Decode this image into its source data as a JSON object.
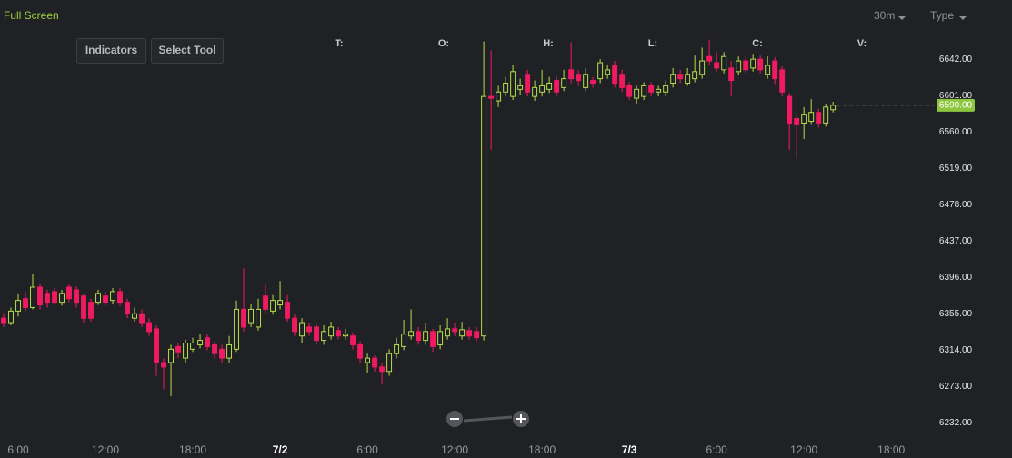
{
  "toolbar": {
    "full_screen": "Full Screen",
    "interval": "30m",
    "type": "Type",
    "buttons": [
      "Indicators",
      "Select Tool"
    ]
  },
  "legend_labels": [
    "T:",
    "O:",
    "H:",
    "L:",
    "C:",
    "V:"
  ],
  "chart_data": {
    "type": "candlestick",
    "up_color": "#b5dc4a",
    "down_color": "#ef1a60",
    "grid": false,
    "x": [
      5,
      5.5,
      6,
      6.5,
      7,
      7.5,
      8,
      8.5,
      9,
      9.5,
      10,
      10.5,
      11,
      11.5,
      12,
      12.5,
      13,
      13.5,
      14,
      14.5,
      15,
      15.5,
      16,
      16.5,
      17,
      17.5,
      18,
      18.5,
      19,
      19.5,
      20,
      20.5,
      21,
      21.5,
      22,
      22.5,
      23,
      23.5,
      24,
      24.5,
      25,
      25.5,
      26,
      26.5,
      27,
      27.5,
      28,
      28.5,
      29,
      29.5,
      30,
      30.5,
      31,
      31.5,
      32,
      32.5,
      33,
      33.5,
      34,
      34.5,
      35,
      35.5,
      36,
      36.5,
      37,
      37.5,
      38,
      38.5,
      39,
      39.5,
      40,
      40.5,
      41,
      41.5,
      42,
      42.5,
      43,
      43.5,
      44,
      44.5,
      45,
      45.5,
      46,
      46.5,
      47,
      47.5,
      48,
      48.5,
      49,
      49.5,
      50,
      50.5,
      51,
      51.5,
      52,
      52.5,
      53,
      53.5,
      54,
      54.5,
      55,
      55.5,
      56,
      56.5,
      57,
      57.5,
      58,
      58.5,
      59,
      59.5,
      60,
      60.5,
      61,
      61.5,
      62
    ],
    "open": [
      6350,
      6345,
      6358,
      6372,
      6362,
      6385,
      6378,
      6380,
      6368,
      6385,
      6382,
      6375,
      6368,
      6368,
      6375,
      6370,
      6380,
      6368,
      6350,
      6355,
      6345,
      6338,
      6300,
      6300,
      6318,
      6305,
      6315,
      6320,
      6328,
      6320,
      6315,
      6305,
      6315,
      6360,
      6345,
      6340,
      6375,
      6358,
      6365,
      6368,
      6350,
      6330,
      6340,
      6340,
      6325,
      6330,
      6336,
      6330,
      6330,
      6320,
      6300,
      6305,
      6295,
      6290,
      6310,
      6318,
      6330,
      6335,
      6325,
      6335,
      6320,
      6330,
      6338,
      6330,
      6336,
      6335,
      6330,
      6600,
      6595,
      6605,
      6600,
      6608,
      6625,
      6600,
      6605,
      6608,
      6618,
      6610,
      6630,
      6625,
      6610,
      6618,
      6620,
      6625,
      6635,
      6625,
      6612,
      6598,
      6600,
      6612,
      6605,
      6605,
      6615,
      6625,
      6615,
      6620,
      6625,
      6645,
      6638,
      6630,
      6632,
      6628,
      6640,
      6632,
      6642,
      6625,
      6640,
      6630,
      6600,
      6575,
      6570,
      6572,
      6582,
      6570,
      6585
    ],
    "high": [
      6356,
      6362,
      6378,
      6380,
      6400,
      6388,
      6382,
      6384,
      6382,
      6388,
      6386,
      6378,
      6372,
      6382,
      6380,
      6384,
      6384,
      6372,
      6362,
      6360,
      6350,
      6342,
      6305,
      6320,
      6322,
      6326,
      6328,
      6332,
      6332,
      6324,
      6320,
      6330,
      6370,
      6406,
      6366,
      6372,
      6388,
      6376,
      6392,
      6376,
      6355,
      6350,
      6345,
      6344,
      6342,
      6346,
      6340,
      6338,
      6334,
      6324,
      6310,
      6308,
      6300,
      6315,
      6328,
      6348,
      6360,
      6340,
      6345,
      6338,
      6342,
      6350,
      6345,
      6346,
      6340,
      6340,
      6662,
      6652,
      6612,
      6622,
      6635,
      6620,
      6630,
      6618,
      6630,
      6622,
      6622,
      6630,
      6661,
      6630,
      6632,
      6622,
      6642,
      6636,
      6640,
      6630,
      6616,
      6612,
      6616,
      6616,
      6612,
      6618,
      6632,
      6630,
      6632,
      6646,
      6655,
      6664,
      6650,
      6650,
      6640,
      6645,
      6646,
      6648,
      6646,
      6645,
      6644,
      6634,
      6604,
      6580,
      6588,
      6597,
      6586,
      6592,
      6594
    ],
    "low": [
      6340,
      6342,
      6352,
      6358,
      6360,
      6360,
      6362,
      6365,
      6364,
      6368,
      6362,
      6345,
      6346,
      6365,
      6364,
      6366,
      6364,
      6350,
      6346,
      6340,
      6330,
      6285,
      6270,
      6262,
      6305,
      6300,
      6312,
      6316,
      6314,
      6305,
      6300,
      6300,
      6312,
      6335,
      6340,
      6336,
      6355,
      6354,
      6360,
      6346,
      6330,
      6322,
      6330,
      6320,
      6320,
      6326,
      6326,
      6326,
      6315,
      6300,
      6288,
      6290,
      6275,
      6285,
      6305,
      6314,
      6326,
      6320,
      6320,
      6312,
      6315,
      6326,
      6330,
      6326,
      6326,
      6324,
      6325,
      6540,
      6588,
      6600,
      6596,
      6602,
      6600,
      6595,
      6600,
      6604,
      6600,
      6606,
      6615,
      6612,
      6606,
      6610,
      6615,
      6620,
      6610,
      6605,
      6596,
      6592,
      6596,
      6600,
      6600,
      6600,
      6610,
      6615,
      6612,
      6616,
      6620,
      6636,
      6628,
      6626,
      6600,
      6624,
      6626,
      6628,
      6626,
      6620,
      6614,
      6600,
      6540,
      6530,
      6552,
      6568,
      6565,
      6566,
      6582
    ],
    "close": [
      6345,
      6358,
      6370,
      6362,
      6385,
      6365,
      6368,
      6368,
      6378,
      6372,
      6368,
      6350,
      6350,
      6378,
      6368,
      6380,
      6368,
      6355,
      6355,
      6345,
      6335,
      6300,
      6295,
      6315,
      6312,
      6322,
      6322,
      6325,
      6318,
      6310,
      6305,
      6320,
      6360,
      6340,
      6360,
      6360,
      6360,
      6370,
      6370,
      6350,
      6335,
      6345,
      6335,
      6325,
      6335,
      6340,
      6330,
      6332,
      6320,
      6305,
      6305,
      6295,
      6290,
      6310,
      6320,
      6332,
      6335,
      6325,
      6335,
      6318,
      6335,
      6338,
      6335,
      6337,
      6330,
      6328,
      6600,
      6598,
      6605,
      6615,
      6628,
      6612,
      6605,
      6610,
      6612,
      6615,
      6605,
      6620,
      6620,
      6618,
      6625,
      6615,
      6638,
      6630,
      6615,
      6610,
      6600,
      6608,
      6612,
      6605,
      6608,
      6612,
      6625,
      6620,
      6625,
      6628,
      6640,
      6640,
      6632,
      6645,
      6618,
      6640,
      6630,
      6642,
      6630,
      6635,
      6620,
      6605,
      6570,
      6568,
      6580,
      6582,
      6570,
      6588,
      6590
    ],
    "xlim": [
      4.75,
      68.8
    ],
    "xticks": [
      {
        "value": 6,
        "label": "6:00"
      },
      {
        "value": 12,
        "label": "12:00"
      },
      {
        "value": 18,
        "label": "18:00"
      },
      {
        "value": 24,
        "label": "7/2"
      },
      {
        "value": 30,
        "label": "6:00"
      },
      {
        "value": 36,
        "label": "12:00"
      },
      {
        "value": 42,
        "label": "18:00"
      },
      {
        "value": 48,
        "label": "7/3"
      },
      {
        "value": 54,
        "label": "6:00"
      },
      {
        "value": 60,
        "label": "12:00"
      },
      {
        "value": 66,
        "label": "18:00"
      }
    ],
    "ylim": [
      6217,
      6678
    ],
    "yticks": [
      {
        "value": 6232,
        "label": "6232.00"
      },
      {
        "value": 6273,
        "label": "6273.00"
      },
      {
        "value": 6314,
        "label": "6314.00"
      },
      {
        "value": 6355,
        "label": "6355.00"
      },
      {
        "value": 6396,
        "label": "6396.00"
      },
      {
        "value": 6437,
        "label": "6437.00"
      },
      {
        "value": 6478,
        "label": "6478.00"
      },
      {
        "value": 6519,
        "label": "6519.00"
      },
      {
        "value": 6560,
        "label": "6560.00"
      },
      {
        "value": 6601,
        "label": "6601.00"
      },
      {
        "value": 6642,
        "label": "6642.00"
      }
    ],
    "last_price": {
      "value": 6590,
      "label": "6590.00"
    }
  }
}
